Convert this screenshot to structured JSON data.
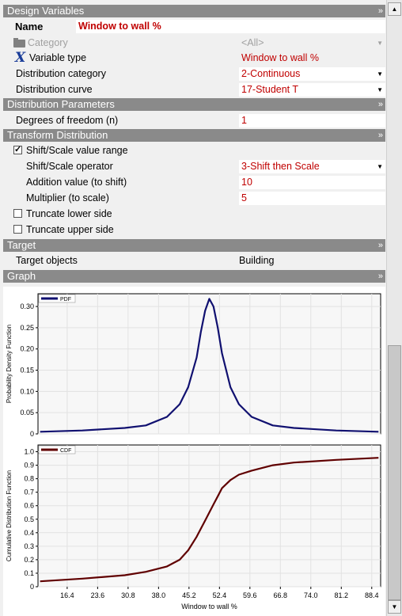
{
  "sections": {
    "design_variables": "Design Variables",
    "distribution_parameters": "Distribution Parameters",
    "transform_distribution": "Transform Distribution",
    "target": "Target",
    "graph": "Graph"
  },
  "design": {
    "name_label": "Name",
    "name_value": "Window to wall %",
    "category_label": "Category",
    "category_value": "<All>",
    "variable_type_label": "Variable type",
    "variable_type_value": "Window to wall %",
    "distribution_category_label": "Distribution category",
    "distribution_category_value": "2-Continuous",
    "distribution_curve_label": "Distribution curve",
    "distribution_curve_value": "17-Student T"
  },
  "params": {
    "dof_label": "Degrees of freedom (n)",
    "dof_value": "1"
  },
  "transform": {
    "shift_scale_label": "Shift/Scale value range",
    "shift_scale_checked": true,
    "operator_label": "Shift/Scale operator",
    "operator_value": "3-Shift then Scale",
    "addition_label": "Addition value (to shift)",
    "addition_value": "10",
    "multiplier_label": "Multiplier (to scale)",
    "multiplier_value": "5",
    "truncate_lower_label": "Truncate lower side",
    "truncate_lower_checked": false,
    "truncate_upper_label": "Truncate upper side",
    "truncate_upper_checked": false
  },
  "target": {
    "objects_label": "Target objects",
    "objects_value": "Building"
  },
  "icons": {
    "chevron": "double-chevron-icon",
    "category": "folder-icon",
    "variable_type": "x-variable-icon"
  },
  "colors": {
    "header": "#8a8a8a",
    "value_text": "#c00000",
    "pdf_line": "#101070",
    "cdf_line": "#600000"
  },
  "chart_data": [
    {
      "type": "line",
      "legend": "PDF",
      "ylabel": "Probability Density Function",
      "xlabel": "",
      "ylim": [
        0,
        0.33
      ],
      "xlim": [
        9.5,
        90.5
      ],
      "yticks": [
        0,
        0.05,
        0.1,
        0.15,
        0.2,
        0.25,
        0.3
      ],
      "ytick_labels": [
        "0",
        "0.05",
        "0.10",
        "0.15",
        "0.20",
        "0.25",
        "0.30"
      ],
      "x": [
        10,
        20,
        30,
        35,
        40,
        43,
        45,
        47,
        48,
        49,
        50,
        51,
        52,
        53,
        55,
        57,
        60,
        65,
        70,
        80,
        90
      ],
      "y": [
        0.005,
        0.008,
        0.014,
        0.02,
        0.04,
        0.07,
        0.11,
        0.18,
        0.24,
        0.29,
        0.318,
        0.3,
        0.25,
        0.19,
        0.11,
        0.07,
        0.04,
        0.02,
        0.014,
        0.008,
        0.005
      ]
    },
    {
      "type": "line",
      "legend": "CDF",
      "ylabel": "Cumulative Distribution Function",
      "xlabel": "Window to wall %",
      "ylim": [
        0,
        1.05
      ],
      "xlim": [
        9.5,
        90.5
      ],
      "yticks": [
        0,
        0.1,
        0.2,
        0.3,
        0.4,
        0.5,
        0.6,
        0.7,
        0.8,
        0.9,
        1.0
      ],
      "ytick_labels": [
        "0",
        "0.1",
        "0.2",
        "0.3",
        "0.4",
        "0.5",
        "0.6",
        "0.7",
        "0.8",
        "0.9",
        "1.0"
      ],
      "xticks": [
        16.4,
        23.6,
        30.8,
        38.0,
        45.2,
        52.4,
        59.6,
        66.8,
        74.0,
        81.2,
        88.4
      ],
      "xtick_labels": [
        "16.4",
        "23.6",
        "30.8",
        "38.0",
        "45.2",
        "52.4",
        "59.6",
        "66.8",
        "74.0",
        "81.2",
        "88.4"
      ],
      "x": [
        10,
        20,
        30,
        35,
        40,
        43,
        45,
        47,
        48,
        49,
        50,
        51,
        52,
        53,
        55,
        57,
        60,
        65,
        70,
        80,
        90
      ],
      "y": [
        0.04,
        0.06,
        0.085,
        0.11,
        0.15,
        0.2,
        0.27,
        0.37,
        0.43,
        0.49,
        0.55,
        0.61,
        0.67,
        0.73,
        0.79,
        0.83,
        0.86,
        0.9,
        0.92,
        0.94,
        0.955
      ]
    }
  ]
}
